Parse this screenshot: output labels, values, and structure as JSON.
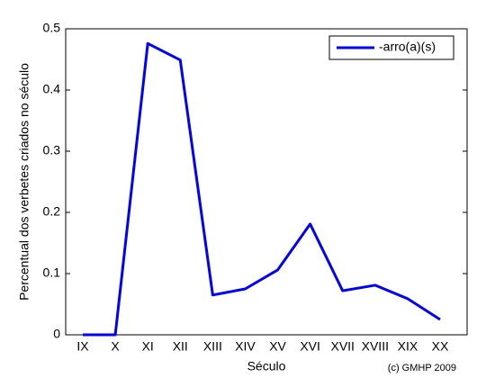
{
  "chart_data": {
    "type": "line",
    "xlabel": "Século",
    "ylabel": "Percentual dos verbetes criados no século",
    "annotation": "(c) GMHP 2009",
    "categories": [
      "IX",
      "X",
      "XI",
      "XII",
      "XIII",
      "XIV",
      "XV",
      "XVI",
      "XVII",
      "XVIII",
      "XIX",
      "XX"
    ],
    "series": [
      {
        "name": "-arro(a)(s)",
        "color": "#0000ff",
        "values": [
          0,
          0,
          0.476,
          0.449,
          0.065,
          0.075,
          0.106,
          0.181,
          0.072,
          0.081,
          0.059,
          0.025
        ]
      }
    ],
    "ylim": [
      0,
      0.5
    ],
    "yticks": [
      0,
      0.1,
      0.2,
      0.3,
      0.4,
      0.5
    ],
    "grid": false,
    "legend": "upper-right"
  }
}
